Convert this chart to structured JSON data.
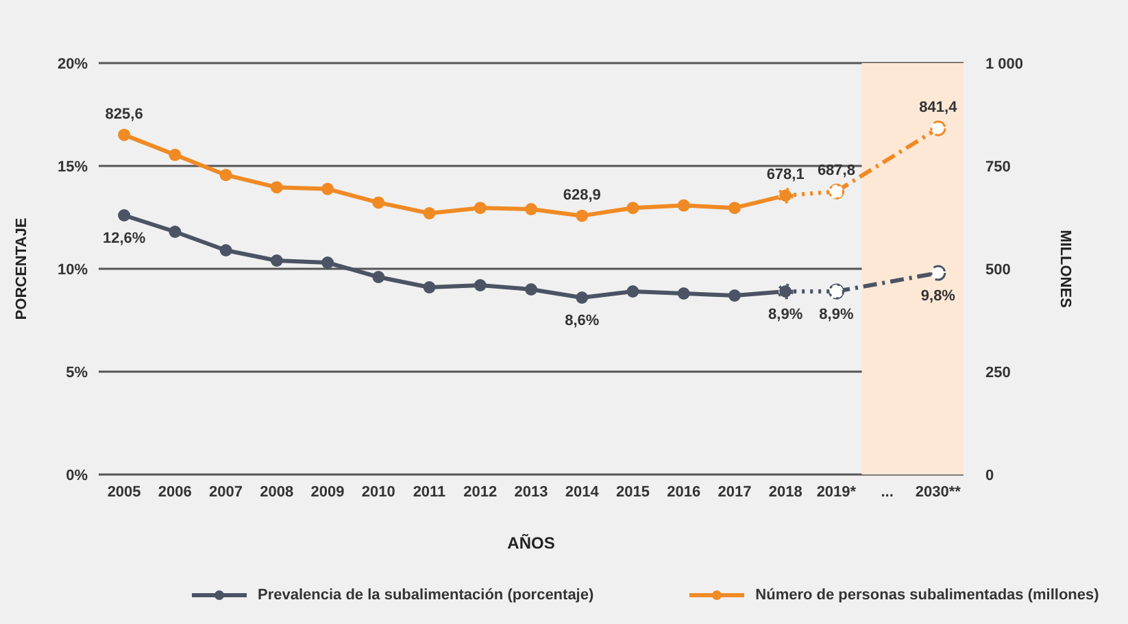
{
  "chart_data": {
    "type": "line",
    "xlabel": "AÑOS",
    "ylabel": "PORCENTAJE",
    "y2label": "MILLONES",
    "categories": [
      "2005",
      "2006",
      "2007",
      "2008",
      "2009",
      "2010",
      "2011",
      "2012",
      "2013",
      "2014",
      "2015",
      "2016",
      "2017",
      "2018",
      "2019*",
      "...",
      "2030**"
    ],
    "ylim": [
      0,
      20
    ],
    "yticks": [
      {
        "value": 0,
        "label": "0%"
      },
      {
        "value": 5,
        "label": "5%"
      },
      {
        "value": 10,
        "label": "10%"
      },
      {
        "value": 15,
        "label": "15%"
      },
      {
        "value": 20,
        "label": "20%"
      }
    ],
    "y2lim": [
      0,
      1000
    ],
    "y2ticks": [
      0,
      250,
      500,
      750,
      {
        "value": 1000,
        "label": "1 000"
      }
    ],
    "grid": "y",
    "legend": "bottom",
    "marker": "circle",
    "bands": [
      {
        "axis": "x",
        "from": "...",
        "to": "2030**",
        "color": "#fde8d6"
      }
    ],
    "series": [
      {
        "name": "Prevalencia de la subalimentación (porcentaje)",
        "color": "#4b5364",
        "axis": "y",
        "line_style": "solid",
        "values": [
          12.6,
          11.8,
          10.9,
          10.4,
          10.3,
          9.6,
          9.1,
          9.2,
          9.0,
          8.6,
          8.9,
          8.8,
          8.7,
          8.9,
          null,
          null,
          null
        ],
        "value_labels": [
          "12,6%",
          null,
          null,
          null,
          null,
          null,
          null,
          null,
          null,
          "8,6%",
          null,
          null,
          null,
          "8,9%",
          null,
          null,
          null
        ]
      },
      {
        "color": "#4b5364",
        "axis": "y",
        "line_style": "dotted",
        "values": [
          null,
          null,
          null,
          null,
          null,
          null,
          null,
          null,
          null,
          null,
          null,
          null,
          null,
          8.9,
          8.9,
          null,
          null
        ],
        "value_labels": [
          null,
          null,
          null,
          null,
          null,
          null,
          null,
          null,
          null,
          null,
          null,
          null,
          null,
          null,
          "8,9%",
          null,
          null
        ]
      },
      {
        "color": "#4b5364",
        "axis": "y",
        "line_style": "dashed",
        "values": [
          null,
          null,
          null,
          null,
          null,
          null,
          null,
          null,
          null,
          null,
          null,
          null,
          null,
          null,
          8.9,
          null,
          9.8
        ],
        "value_labels": [
          null,
          null,
          null,
          null,
          null,
          null,
          null,
          null,
          null,
          null,
          null,
          null,
          null,
          null,
          null,
          null,
          "9,8%"
        ]
      },
      {
        "name": "Número de personas subalimentadas (millones)",
        "color": "#f08a24",
        "axis": "y2",
        "line_style": "solid",
        "values": [
          825.6,
          777,
          728,
          698,
          694,
          661,
          635,
          648,
          645,
          628.9,
          648,
          654,
          648,
          678.1,
          null,
          null,
          null
        ],
        "value_labels": [
          "825,6",
          null,
          null,
          null,
          null,
          null,
          null,
          null,
          null,
          "628,9",
          null,
          null,
          null,
          "678,1",
          null,
          null,
          null
        ]
      },
      {
        "color": "#f08a24",
        "axis": "y2",
        "line_style": "dotted",
        "values": [
          null,
          null,
          null,
          null,
          null,
          null,
          null,
          null,
          null,
          null,
          null,
          null,
          null,
          678,
          687.8,
          null,
          null
        ],
        "value_labels": [
          null,
          null,
          null,
          null,
          null,
          null,
          null,
          null,
          null,
          null,
          null,
          null,
          null,
          null,
          "687,8",
          null,
          null
        ]
      },
      {
        "color": "#f08a24",
        "axis": "y2",
        "line_style": "dashed",
        "values": [
          null,
          null,
          null,
          null,
          null,
          null,
          null,
          null,
          null,
          null,
          null,
          null,
          null,
          null,
          688,
          null,
          841.4
        ],
        "value_labels": [
          null,
          null,
          null,
          null,
          null,
          null,
          null,
          null,
          null,
          null,
          null,
          null,
          null,
          null,
          null,
          null,
          "841,4"
        ]
      }
    ]
  }
}
